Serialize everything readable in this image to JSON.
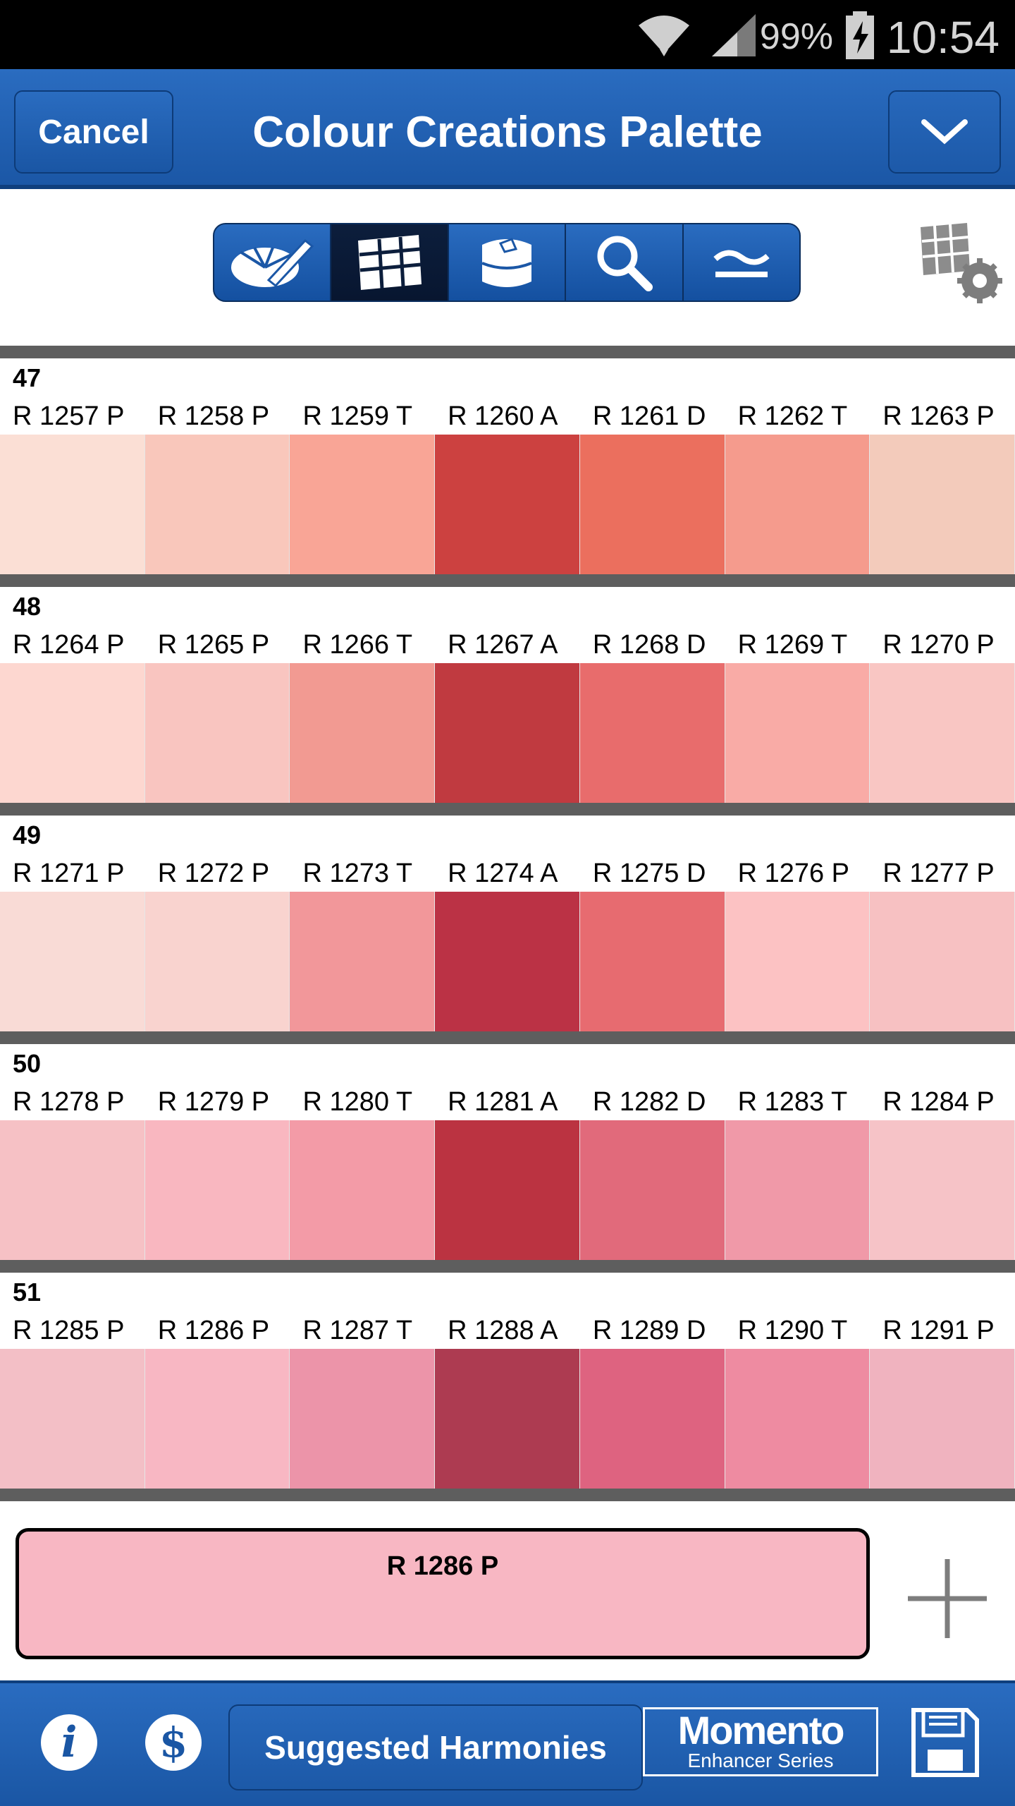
{
  "status_bar": {
    "battery": "99%",
    "time": "10:54"
  },
  "app_bar": {
    "cancel_label": "Cancel",
    "title": "Colour Creations Palette"
  },
  "toolbar": {
    "tabs": [
      {
        "icon": "color-picker-icon"
      },
      {
        "icon": "fan-deck-icon",
        "active": true
      },
      {
        "icon": "paint-tin-icon"
      },
      {
        "icon": "search-icon"
      },
      {
        "icon": "approximately-equal-icon"
      }
    ]
  },
  "palette": {
    "groups": [
      {
        "number": "47",
        "colors": [
          {
            "code": "R 1257 P",
            "hex": "#fbdfd5"
          },
          {
            "code": "R 1258 P",
            "hex": "#f9c7bb"
          },
          {
            "code": "R 1259 T",
            "hex": "#f9a596"
          },
          {
            "code": "R 1260 A",
            "hex": "#cc4140"
          },
          {
            "code": "R 1261 D",
            "hex": "#eb6f5e"
          },
          {
            "code": "R 1262 T",
            "hex": "#f59b8d"
          },
          {
            "code": "R 1263 P",
            "hex": "#f3cbbb"
          }
        ]
      },
      {
        "number": "48",
        "colors": [
          {
            "code": "R 1264 P",
            "hex": "#fdd7d0"
          },
          {
            "code": "R 1265 P",
            "hex": "#f9c5c0"
          },
          {
            "code": "R 1266 T",
            "hex": "#f29a92"
          },
          {
            "code": "R 1267 A",
            "hex": "#c03a40"
          },
          {
            "code": "R 1268 D",
            "hex": "#e86c6c"
          },
          {
            "code": "R 1269 T",
            "hex": "#f9aba6"
          },
          {
            "code": "R 1270 P",
            "hex": "#f9c6c3"
          }
        ]
      },
      {
        "number": "49",
        "colors": [
          {
            "code": "R 1271 P",
            "hex": "#f9dbd6"
          },
          {
            "code": "R 1272 P",
            "hex": "#f9d3cf"
          },
          {
            "code": "R 1273 T",
            "hex": "#f2979a"
          },
          {
            "code": "R 1274 A",
            "hex": "#bb3245"
          },
          {
            "code": "R 1275 D",
            "hex": "#e76b70"
          },
          {
            "code": "R 1276 P",
            "hex": "#fcc2c3"
          },
          {
            "code": "R 1277 P",
            "hex": "#f7c1c2"
          }
        ]
      },
      {
        "number": "50",
        "colors": [
          {
            "code": "R 1278 P",
            "hex": "#f6c1c5"
          },
          {
            "code": "R 1279 P",
            "hex": "#f9b7c0"
          },
          {
            "code": "R 1280 T",
            "hex": "#f39ba7"
          },
          {
            "code": "R 1281 A",
            "hex": "#bb3341"
          },
          {
            "code": "R 1282 D",
            "hex": "#e16a7b"
          },
          {
            "code": "R 1283 T",
            "hex": "#f099a8"
          },
          {
            "code": "R 1284 P",
            "hex": "#f6c3c7"
          }
        ]
      },
      {
        "number": "51",
        "colors": [
          {
            "code": "R 1285 P",
            "hex": "#f3bfc6"
          },
          {
            "code": "R 1286 P",
            "hex": "#f8b7c3"
          },
          {
            "code": "R 1287 T",
            "hex": "#ec94a9"
          },
          {
            "code": "R 1288 A",
            "hex": "#ad3b51"
          },
          {
            "code": "R 1289 D",
            "hex": "#de6380"
          },
          {
            "code": "R 1290 T",
            "hex": "#ee8ba1"
          },
          {
            "code": "R 1291 P",
            "hex": "#f0b3bf"
          }
        ]
      }
    ]
  },
  "selected": {
    "code": "R 1286 P",
    "hex": "#f8b7c3"
  },
  "bottom_bar": {
    "info_glyph": "i",
    "dollar_glyph": "$",
    "harmonies_label": "Suggested Harmonies",
    "logo_line1": "Momento",
    "logo_line2": "Enhancer Series"
  },
  "colors": {
    "brand_blue": "#1b57a6",
    "separator": "#5e5e5e"
  }
}
